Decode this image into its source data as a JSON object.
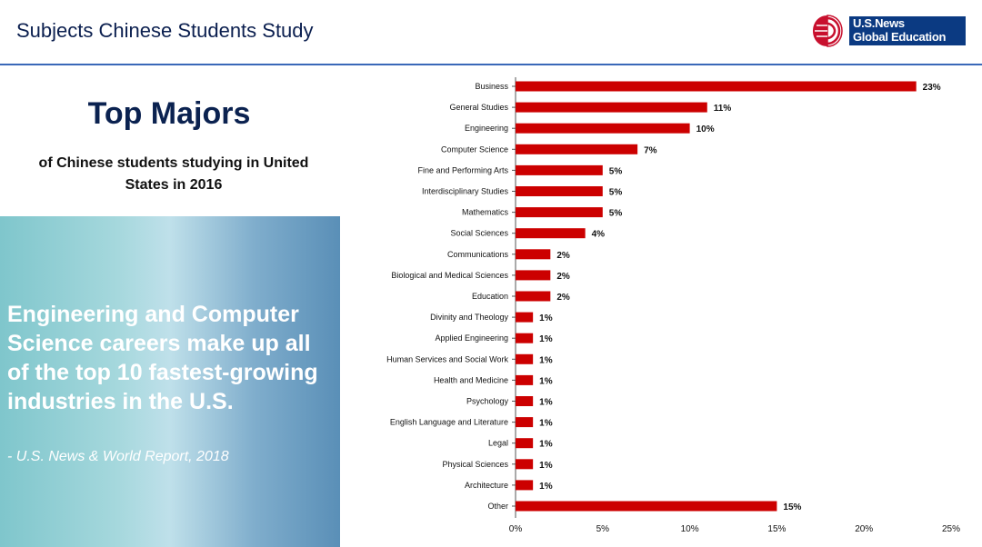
{
  "header": {
    "title": "Subjects Chinese Students Study",
    "logo_line1": "U.S.News",
    "logo_line2": "Global Education"
  },
  "left_panel": {
    "heading": "Top Majors",
    "subtitle": "of Chinese students studying in United States in 2016",
    "quote": "Engineering and Computer Science careers make up all of the top 10 fastest-growing industries in the U.S.",
    "quote_source": "- U.S. News & World Report, 2018"
  },
  "colors": {
    "bar": "#cc0000",
    "header_line": "#3a68b8",
    "logo_blue": "#0b3a82"
  },
  "chart_data": {
    "type": "bar",
    "orientation": "horizontal",
    "categories": [
      "Business",
      "General Studies",
      "Engineering",
      "Computer Science",
      "Fine and Performing Arts",
      "Interdisciplinary Studies",
      "Mathematics",
      "Social Sciences",
      "Communications",
      "Biological and Medical Sciences",
      "Education",
      "Divinity and Theology",
      "Applied Engineering",
      "Human Services and Social Work",
      "Health and Medicine",
      "Psychology",
      "English Language and Literature",
      "Legal",
      "Physical Sciences",
      "Architecture",
      "Other"
    ],
    "values": [
      23,
      11,
      10,
      7,
      5,
      5,
      5,
      4,
      2,
      2,
      2,
      1,
      1,
      1,
      1,
      1,
      1,
      1,
      1,
      1,
      15
    ],
    "value_labels": [
      "23%",
      "11%",
      "10%",
      "7%",
      "5%",
      "5%",
      "5%",
      "4%",
      "2%",
      "2%",
      "2%",
      "1%",
      "1%",
      "1%",
      "1%",
      "1%",
      "1%",
      "1%",
      "1%",
      "1%",
      "15%"
    ],
    "xticks": [
      "0%",
      "5%",
      "10%",
      "15%",
      "20%",
      "25%"
    ],
    "xlim": [
      0,
      25
    ],
    "grid": false,
    "title": "",
    "xlabel": "",
    "ylabel": ""
  }
}
